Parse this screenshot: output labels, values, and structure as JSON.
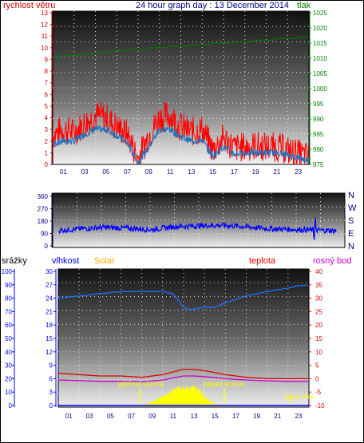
{
  "colors": {
    "wind": "#ff0000",
    "wind_avg": "#1e73be",
    "pressure": "#008000",
    "direction": "#0000ff",
    "humidity": "#1e6fff",
    "solar": "#ffff00",
    "temperature": "#dd0000",
    "dewpoint": "#cc00cc",
    "label_solar": "#ffb000",
    "label_wind": "#cc0000",
    "label_temp": "#dd0000",
    "label_dew": "#cc00cc",
    "label_hum": "#0000ff",
    "label_rain": "#000000",
    "label_pressure": "#008000"
  },
  "header": {
    "title": "24 hour graph day : 13 December 2014",
    "left_label": "rychlost větru",
    "right_label": "tlak"
  },
  "x_ticks": [
    "01",
    "03",
    "05",
    "07",
    "09",
    "11",
    "13",
    "15",
    "17",
    "19",
    "21",
    "23"
  ],
  "wind_chart": {
    "left_ticks": [
      "0",
      "1",
      "2",
      "3",
      "4",
      "5",
      "6",
      "7",
      "8",
      "9",
      "10",
      "11",
      "12",
      "13"
    ],
    "right_ticks": [
      "975",
      "980",
      "985",
      "990",
      "995",
      "1000",
      "1005",
      "1010",
      "1015",
      "1020",
      "1025"
    ]
  },
  "direction_chart": {
    "left_ticks": [
      "0",
      "90",
      "180",
      "270",
      "360"
    ],
    "compass": [
      "N",
      "W",
      "S",
      "E",
      "N"
    ]
  },
  "bottom_chart": {
    "label_rain": "srážky",
    "label_humidity": "vlhkost",
    "label_solar": "Solar",
    "label_temp": "teplota",
    "label_dew": "rosný bod",
    "sunrise": "východ slunce",
    "sunset": "západ slunce",
    "moonrise": "Moon Rise",
    "rain_ticks": [
      "0",
      "10",
      "20",
      "30",
      "40",
      "50",
      "60",
      "70",
      "80",
      "90",
      "100"
    ],
    "hum_ticks": [
      "0",
      "3",
      "6",
      "9",
      "12",
      "15",
      "18",
      "21",
      "24",
      "27",
      "30"
    ],
    "temp_ticks": [
      "-10",
      "-5",
      "0",
      "5",
      "10",
      "15",
      "20",
      "25",
      "30",
      "35",
      "40"
    ]
  },
  "chart_data": [
    {
      "type": "line",
      "title": "24 hour graph day : 13 December 2014",
      "ylabel": "rychlost větru",
      "y2label": "tlak",
      "x_range": [
        0,
        24
      ],
      "ylim": [
        0,
        13
      ],
      "y2lim": [
        975,
        1025
      ],
      "series": [
        {
          "name": "rychlost větru",
          "axis": "left",
          "x": [
            0,
            1,
            2,
            3,
            4,
            5,
            6,
            7,
            8,
            9,
            10,
            11,
            12,
            13,
            14,
            15,
            16,
            17,
            18,
            19,
            20,
            21,
            22,
            23,
            24
          ],
          "values": [
            2.5,
            3,
            2.8,
            3.5,
            4.2,
            4.0,
            3.2,
            2.6,
            0.5,
            2.5,
            4.0,
            4.2,
            3.2,
            2.8,
            3.0,
            1.2,
            2.3,
            1.4,
            1.5,
            1.6,
            1.5,
            1.5,
            1.2,
            0.9,
            0.6
          ]
        },
        {
          "axis": "left",
          "x": [
            0,
            1,
            2,
            3,
            4,
            5,
            6,
            7,
            8,
            9,
            10,
            11,
            12,
            13,
            14,
            15,
            16,
            17,
            18,
            19,
            20,
            21,
            22,
            23,
            24
          ],
          "values": [
            1.8,
            2,
            2,
            2.6,
            3,
            3,
            2.5,
            1.8,
            0.2,
            1.5,
            3,
            3,
            2.4,
            2,
            2.1,
            0.7,
            1.5,
            0.9,
            1,
            1,
            1,
            1,
            0.8,
            0.6,
            0.3
          ]
        },
        {
          "name": "tlak",
          "axis": "right",
          "x": [
            0,
            2,
            4,
            6,
            8,
            10,
            12,
            14,
            16,
            18,
            20,
            22,
            24
          ],
          "values": [
            1010.5,
            1011,
            1011.5,
            1012.5,
            1013,
            1013.5,
            1014,
            1014.5,
            1015,
            1015.5,
            1016,
            1016.5,
            1017
          ]
        }
      ]
    },
    {
      "type": "line",
      "x_range": [
        0,
        24
      ],
      "ylim": [
        0,
        360
      ],
      "series": [
        {
          "x": [
            0,
            2,
            4,
            6,
            8,
            10,
            12,
            14,
            16,
            18,
            20,
            22,
            24
          ],
          "values": [
            112,
            125,
            135,
            128,
            118,
            140,
            145,
            150,
            140,
            125,
            120,
            115,
            110
          ]
        }
      ]
    },
    {
      "type": "line",
      "x_range": [
        0,
        24
      ],
      "ylim_rain": [
        0,
        100
      ],
      "ylim_humidity": [
        0,
        30
      ],
      "ylim_temp": [
        -10,
        40
      ],
      "series": [
        {
          "name": "vlhkost",
          "axis": "humidity",
          "x": [
            0,
            2,
            4,
            6,
            8,
            10,
            11,
            12,
            12.5,
            13,
            14,
            15,
            16,
            18,
            20,
            22,
            23,
            24
          ],
          "values": [
            24,
            24.5,
            25,
            25.5,
            25.5,
            25.5,
            25,
            22,
            21.5,
            21.6,
            22,
            22,
            23,
            24.5,
            25.5,
            26.3,
            26.8,
            27
          ]
        },
        {
          "name": "teplota",
          "axis": "temp",
          "x": [
            0,
            2,
            4,
            6,
            8,
            10,
            12,
            13,
            14,
            16,
            18,
            20,
            22,
            24
          ],
          "values": [
            2,
            1.5,
            1,
            1,
            0.5,
            1.5,
            3.5,
            3.5,
            3,
            1.5,
            0.5,
            0,
            0,
            0
          ]
        },
        {
          "name": "rosný bod",
          "axis": "temp",
          "x": [
            0,
            2,
            4,
            6,
            8,
            10,
            12,
            13,
            14,
            16,
            18,
            20,
            22,
            24
          ],
          "values": [
            -0.5,
            -0.7,
            -1,
            -1,
            -1.2,
            -0.5,
            1,
            1,
            0.8,
            0,
            -0.5,
            -0.8,
            -1,
            -1
          ]
        },
        {
          "name": "Solar",
          "axis": "humidity",
          "x": [
            7.5,
            8,
            9,
            10,
            10.5,
            11,
            11.5,
            12,
            12.5,
            13,
            13.5,
            14,
            14.5,
            15,
            15.5,
            16
          ],
          "values": [
            0,
            0,
            0.8,
            2,
            2.5,
            3.5,
            3.8,
            4,
            3.9,
            4.2,
            3.6,
            1.8,
            0.8,
            0.4,
            0.1,
            0
          ]
        },
        {
          "name": "srážky",
          "axis": "rain",
          "x": [
            0,
            24
          ],
          "values": [
            0,
            0
          ]
        }
      ]
    }
  ]
}
